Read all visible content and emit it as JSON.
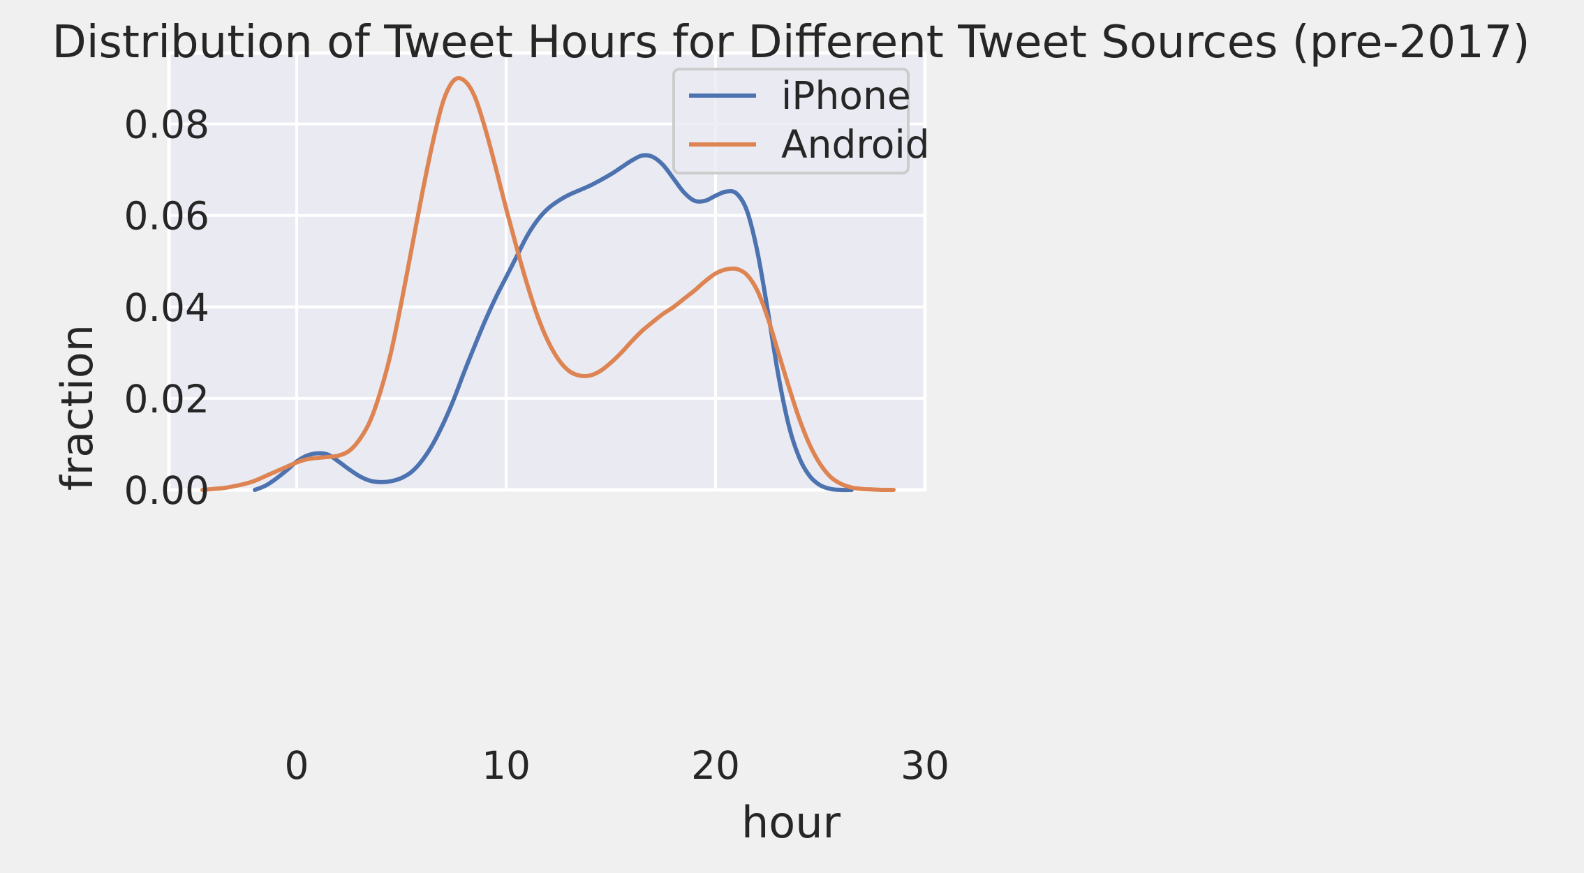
{
  "chart_data": {
    "type": "line",
    "title": "Distribution of Tweet Hours for Different Tweet Sources (pre-2017)",
    "xlabel": "hour",
    "ylabel": "fraction",
    "xlim": [
      -6.1,
      30
    ],
    "ylim": [
      0,
      0.0955
    ],
    "x_ticks": [
      0,
      10,
      20,
      30
    ],
    "y_ticks": [
      0.0,
      0.02,
      0.04,
      0.06,
      0.08
    ],
    "x_tick_labels": [
      "0",
      "10",
      "20",
      "30"
    ],
    "y_tick_labels": [
      "0.00",
      "0.02",
      "0.04",
      "0.06",
      "0.08"
    ],
    "grid": true,
    "legend_position": "top-right",
    "colors": {
      "figure_background": "#f0f0f0",
      "axes_background": "#eaeaf2",
      "grid": "#ffffff",
      "text": "#262626"
    },
    "series": [
      {
        "name": "iPhone",
        "color": "#4c72b0",
        "x": [
          -2.0,
          -1.5,
          -1.0,
          -0.5,
          0.0,
          0.5,
          1.0,
          1.5,
          2.0,
          2.5,
          3.0,
          3.5,
          4.0,
          4.5,
          5.0,
          5.5,
          6.0,
          6.5,
          7.0,
          7.5,
          8.0,
          8.5,
          9.0,
          9.5,
          10.0,
          10.5,
          11.0,
          11.5,
          12.0,
          12.5,
          13.0,
          13.5,
          14.0,
          14.5,
          15.0,
          15.5,
          16.0,
          16.5,
          17.0,
          17.5,
          18.0,
          18.5,
          19.0,
          19.5,
          20.0,
          20.5,
          21.0,
          21.5,
          22.0,
          22.5,
          23.0,
          23.5,
          24.0,
          24.5,
          25.0,
          25.5,
          26.0,
          26.5
        ],
        "y": [
          0.0,
          0.0009,
          0.0024,
          0.0042,
          0.0062,
          0.0075,
          0.008,
          0.0077,
          0.0062,
          0.0045,
          0.003,
          0.002,
          0.0017,
          0.0019,
          0.0026,
          0.004,
          0.0065,
          0.01,
          0.0145,
          0.0198,
          0.0258,
          0.0315,
          0.037,
          0.042,
          0.0465,
          0.051,
          0.0555,
          0.059,
          0.0615,
          0.0632,
          0.0645,
          0.0655,
          0.0665,
          0.0677,
          0.069,
          0.0705,
          0.072,
          0.0731,
          0.0728,
          0.071,
          0.068,
          0.065,
          0.0632,
          0.0632,
          0.0643,
          0.0652,
          0.0648,
          0.061,
          0.052,
          0.039,
          0.025,
          0.014,
          0.007,
          0.003,
          0.001,
          0.0002,
          0.0,
          0.0
        ]
      },
      {
        "name": "Android",
        "color": "#dd8452",
        "x": [
          -4.5,
          -4.0,
          -3.5,
          -3.0,
          -2.5,
          -2.0,
          -1.5,
          -1.0,
          -0.5,
          0.0,
          0.5,
          1.0,
          1.5,
          2.0,
          2.5,
          3.0,
          3.5,
          4.0,
          4.5,
          5.0,
          5.5,
          6.0,
          6.5,
          7.0,
          7.5,
          8.0,
          8.5,
          9.0,
          9.5,
          10.0,
          10.5,
          11.0,
          11.5,
          12.0,
          12.5,
          13.0,
          13.5,
          14.0,
          14.5,
          15.0,
          15.5,
          16.0,
          16.5,
          17.0,
          17.5,
          18.0,
          18.5,
          19.0,
          19.5,
          20.0,
          20.5,
          21.0,
          21.5,
          22.0,
          22.5,
          23.0,
          23.5,
          24.0,
          24.5,
          25.0,
          25.5,
          26.0,
          26.5,
          27.0,
          27.5,
          28.0,
          28.5
        ],
        "y": [
          0.0,
          0.0002,
          0.0004,
          0.0008,
          0.0013,
          0.002,
          0.003,
          0.004,
          0.005,
          0.006,
          0.0067,
          0.007,
          0.0072,
          0.0075,
          0.0085,
          0.011,
          0.015,
          0.0215,
          0.03,
          0.041,
          0.053,
          0.065,
          0.076,
          0.085,
          0.0895,
          0.0895,
          0.086,
          0.079,
          0.0705,
          0.0615,
          0.053,
          0.045,
          0.038,
          0.0325,
          0.0285,
          0.026,
          0.025,
          0.025,
          0.026,
          0.0278,
          0.03,
          0.0325,
          0.0348,
          0.0367,
          0.0385,
          0.04,
          0.0418,
          0.0436,
          0.0456,
          0.0473,
          0.0482,
          0.0483,
          0.047,
          0.0435,
          0.0375,
          0.03,
          0.0225,
          0.0155,
          0.0098,
          0.0056,
          0.0028,
          0.0013,
          0.0005,
          0.0002,
          0.0001,
          0.0,
          0.0
        ]
      }
    ]
  }
}
